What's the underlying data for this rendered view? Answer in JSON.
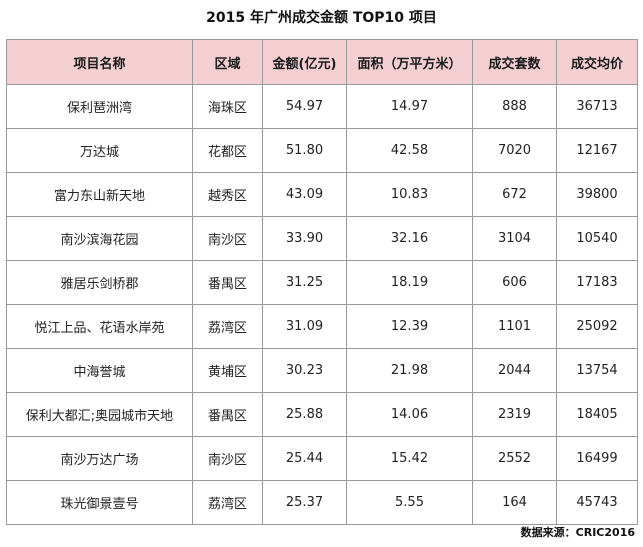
{
  "title": "2015 年广州成交金额 TOP10 项目",
  "table": {
    "headers": [
      "项目名称",
      "区域",
      "金额(亿元)",
      "面积（万平方米）",
      "成交套数",
      "成交均价"
    ],
    "rows": [
      [
        "保利琶洲湾",
        "海珠区",
        "54.97",
        "14.97",
        "888",
        "36713"
      ],
      [
        "万达城",
        "花都区",
        "51.80",
        "42.58",
        "7020",
        "12167"
      ],
      [
        "富力东山新天地",
        "越秀区",
        "43.09",
        "10.83",
        "672",
        "39800"
      ],
      [
        "南沙滨海花园",
        "南沙区",
        "33.90",
        "32.16",
        "3104",
        "10540"
      ],
      [
        "雅居乐剑桥郡",
        "番禺区",
        "31.25",
        "18.19",
        "606",
        "17183"
      ],
      [
        "悦江上品、花语水岸苑",
        "荔湾区",
        "31.09",
        "12.39",
        "1101",
        "25092"
      ],
      [
        "中海誉城",
        "黄埔区",
        "30.23",
        "21.98",
        "2044",
        "13754"
      ],
      [
        "保利大都汇;奥园城市天地",
        "番禺区",
        "25.88",
        "14.06",
        "2319",
        "18405"
      ],
      [
        "南沙万达广场",
        "南沙区",
        "25.44",
        "15.42",
        "2552",
        "16499"
      ],
      [
        "珠光御景壹号",
        "荔湾区",
        "25.37",
        "5.55",
        "164",
        "45743"
      ]
    ]
  },
  "source": "数据来源：CRIC2016",
  "colors": {
    "header_bg": "#f3cfd1",
    "border": "#9a9a9a"
  }
}
